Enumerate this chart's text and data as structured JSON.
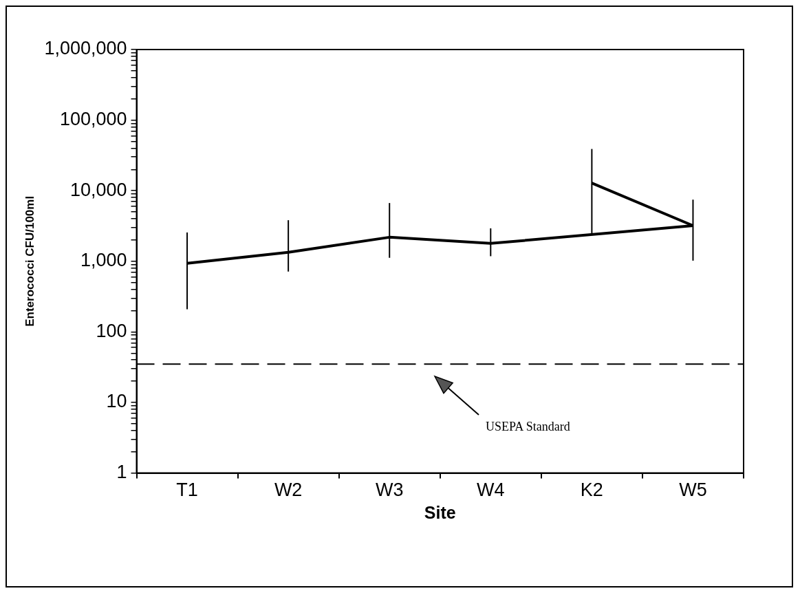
{
  "chart_data": {
    "type": "line",
    "xlabel": "Site",
    "ylabel": "Enterococci CFU/100ml",
    "categories": [
      "T1",
      "W2",
      "W3",
      "W4",
      "K2",
      "W5"
    ],
    "series": [
      {
        "color": "#000000",
        "values": [
          935,
          1340,
          2190,
          1790,
          null,
          3200
        ],
        "errors": [
          [
            209,
            2560
          ],
          [
            715,
            3820
          ],
          [
            1120,
            6690
          ],
          [
            1180,
            2930
          ],
          null,
          [
            1020,
            7470
          ]
        ]
      },
      {
        "color": "#000000",
        "values": [
          null,
          null,
          null,
          null,
          12800,
          3200
        ],
        "errors": [
          null,
          null,
          null,
          null,
          [
            2500,
            39000
          ],
          null
        ]
      }
    ],
    "log": "y",
    "ylim": [
      1,
      1000000
    ],
    "yticks": [
      1,
      {
        "value": 2,
        "label": null
      },
      {
        "value": 3,
        "label": null
      },
      {
        "value": 4,
        "label": null
      },
      {
        "value": 5,
        "label": null
      },
      {
        "value": 6,
        "label": null
      },
      {
        "value": 7,
        "label": null
      },
      {
        "value": 8,
        "label": null
      },
      {
        "value": 9,
        "label": null
      },
      10,
      {
        "value": 20,
        "label": null
      },
      {
        "value": 30,
        "label": null
      },
      {
        "value": 40,
        "label": null
      },
      {
        "value": 50,
        "label": null
      },
      {
        "value": 60,
        "label": null
      },
      {
        "value": 70,
        "label": null
      },
      {
        "value": 80,
        "label": null
      },
      {
        "value": 90,
        "label": null
      },
      100,
      {
        "value": 200,
        "label": null
      },
      {
        "value": 300,
        "label": null
      },
      {
        "value": 400,
        "label": null
      },
      {
        "value": 500,
        "label": null
      },
      {
        "value": 600,
        "label": null
      },
      {
        "value": 700,
        "label": null
      },
      {
        "value": 800,
        "label": null
      },
      {
        "value": 900,
        "label": null
      },
      {
        "value": 1000,
        "label": "1,000"
      },
      {
        "value": 2000,
        "label": null
      },
      {
        "value": 3000,
        "label": null
      },
      {
        "value": 4000,
        "label": null
      },
      {
        "value": 5000,
        "label": null
      },
      {
        "value": 6000,
        "label": null
      },
      {
        "value": 7000,
        "label": null
      },
      {
        "value": 8000,
        "label": null
      },
      {
        "value": 9000,
        "label": null
      },
      {
        "value": 10000,
        "label": "10,000"
      },
      {
        "value": 20000,
        "label": null
      },
      {
        "value": 30000,
        "label": null
      },
      {
        "value": 40000,
        "label": null
      },
      {
        "value": 50000,
        "label": null
      },
      {
        "value": 60000,
        "label": null
      },
      {
        "value": 70000,
        "label": null
      },
      {
        "value": 80000,
        "label": null
      },
      {
        "value": 90000,
        "label": null
      },
      {
        "value": 100000,
        "label": "100,000"
      },
      {
        "value": 200000,
        "label": null
      },
      {
        "value": 300000,
        "label": null
      },
      {
        "value": 400000,
        "label": null
      },
      {
        "value": 500000,
        "label": null
      },
      {
        "value": 600000,
        "label": null
      },
      {
        "value": 700000,
        "label": null
      },
      {
        "value": 800000,
        "label": null
      },
      {
        "value": 900000,
        "label": null
      },
      {
        "value": 1000000,
        "label": "1,000,000"
      }
    ],
    "ref_lines": [
      {
        "axis": "y",
        "value": 35,
        "label": "USEPA Standard",
        "color": "#000000",
        "line_style": "dashed"
      }
    ],
    "grid": false,
    "legend": false,
    "marker": "none",
    "line_style": "solid"
  }
}
